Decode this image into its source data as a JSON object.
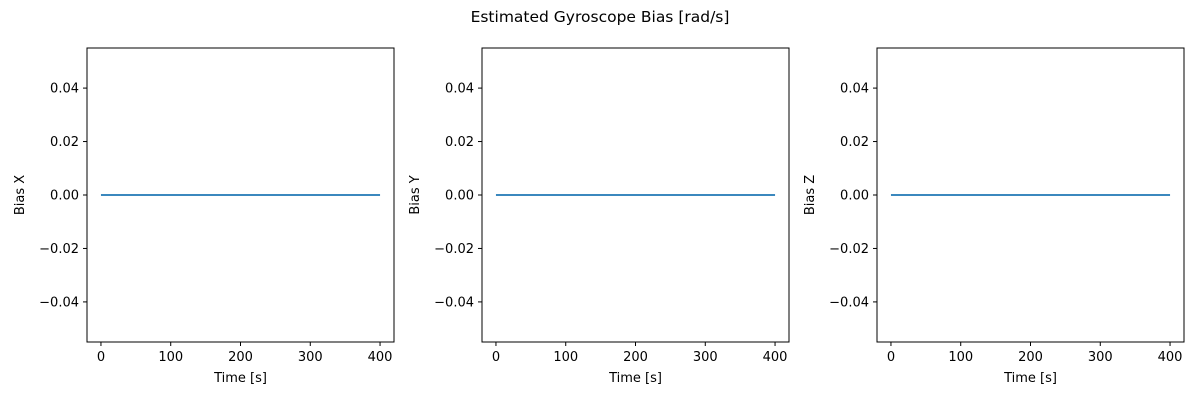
{
  "figure": {
    "title": "Estimated Gyroscope Bias [rad/s]",
    "line_color": "#1f77b4"
  },
  "chart_data": [
    {
      "type": "line",
      "xlabel": "Time [s]",
      "ylabel": "Bias X",
      "xlim": [
        -20,
        420
      ],
      "ylim": [
        -0.055,
        0.055
      ],
      "xticks": [
        0,
        100,
        200,
        300,
        400
      ],
      "xtick_labels": [
        "0",
        "100",
        "200",
        "300",
        "400"
      ],
      "yticks": [
        -0.04,
        -0.02,
        0.0,
        0.02,
        0.04
      ],
      "ytick_labels": [
        "−0.04",
        "−0.02",
        "0.00",
        "0.02",
        "0.04"
      ],
      "grid": false,
      "series": [
        {
          "x": [
            0,
            400
          ],
          "y": [
            0.0,
            0.0
          ]
        }
      ]
    },
    {
      "type": "line",
      "xlabel": "Time [s]",
      "ylabel": "Bias Y",
      "xlim": [
        -20,
        420
      ],
      "ylim": [
        -0.055,
        0.055
      ],
      "xticks": [
        0,
        100,
        200,
        300,
        400
      ],
      "xtick_labels": [
        "0",
        "100",
        "200",
        "300",
        "400"
      ],
      "yticks": [
        -0.04,
        -0.02,
        0.0,
        0.02,
        0.04
      ],
      "ytick_labels": [
        "−0.04",
        "−0.02",
        "0.00",
        "0.02",
        "0.04"
      ],
      "grid": false,
      "series": [
        {
          "x": [
            0,
            400
          ],
          "y": [
            0.0,
            0.0
          ]
        }
      ]
    },
    {
      "type": "line",
      "xlabel": "Time [s]",
      "ylabel": "Bias Z",
      "xlim": [
        -20,
        420
      ],
      "ylim": [
        -0.055,
        0.055
      ],
      "xticks": [
        0,
        100,
        200,
        300,
        400
      ],
      "xtick_labels": [
        "0",
        "100",
        "200",
        "300",
        "400"
      ],
      "yticks": [
        -0.04,
        -0.02,
        0.0,
        0.02,
        0.04
      ],
      "ytick_labels": [
        "−0.04",
        "−0.02",
        "0.00",
        "0.02",
        "0.04"
      ],
      "grid": false,
      "series": [
        {
          "x": [
            0,
            400
          ],
          "y": [
            0.0,
            0.0
          ]
        }
      ]
    }
  ]
}
